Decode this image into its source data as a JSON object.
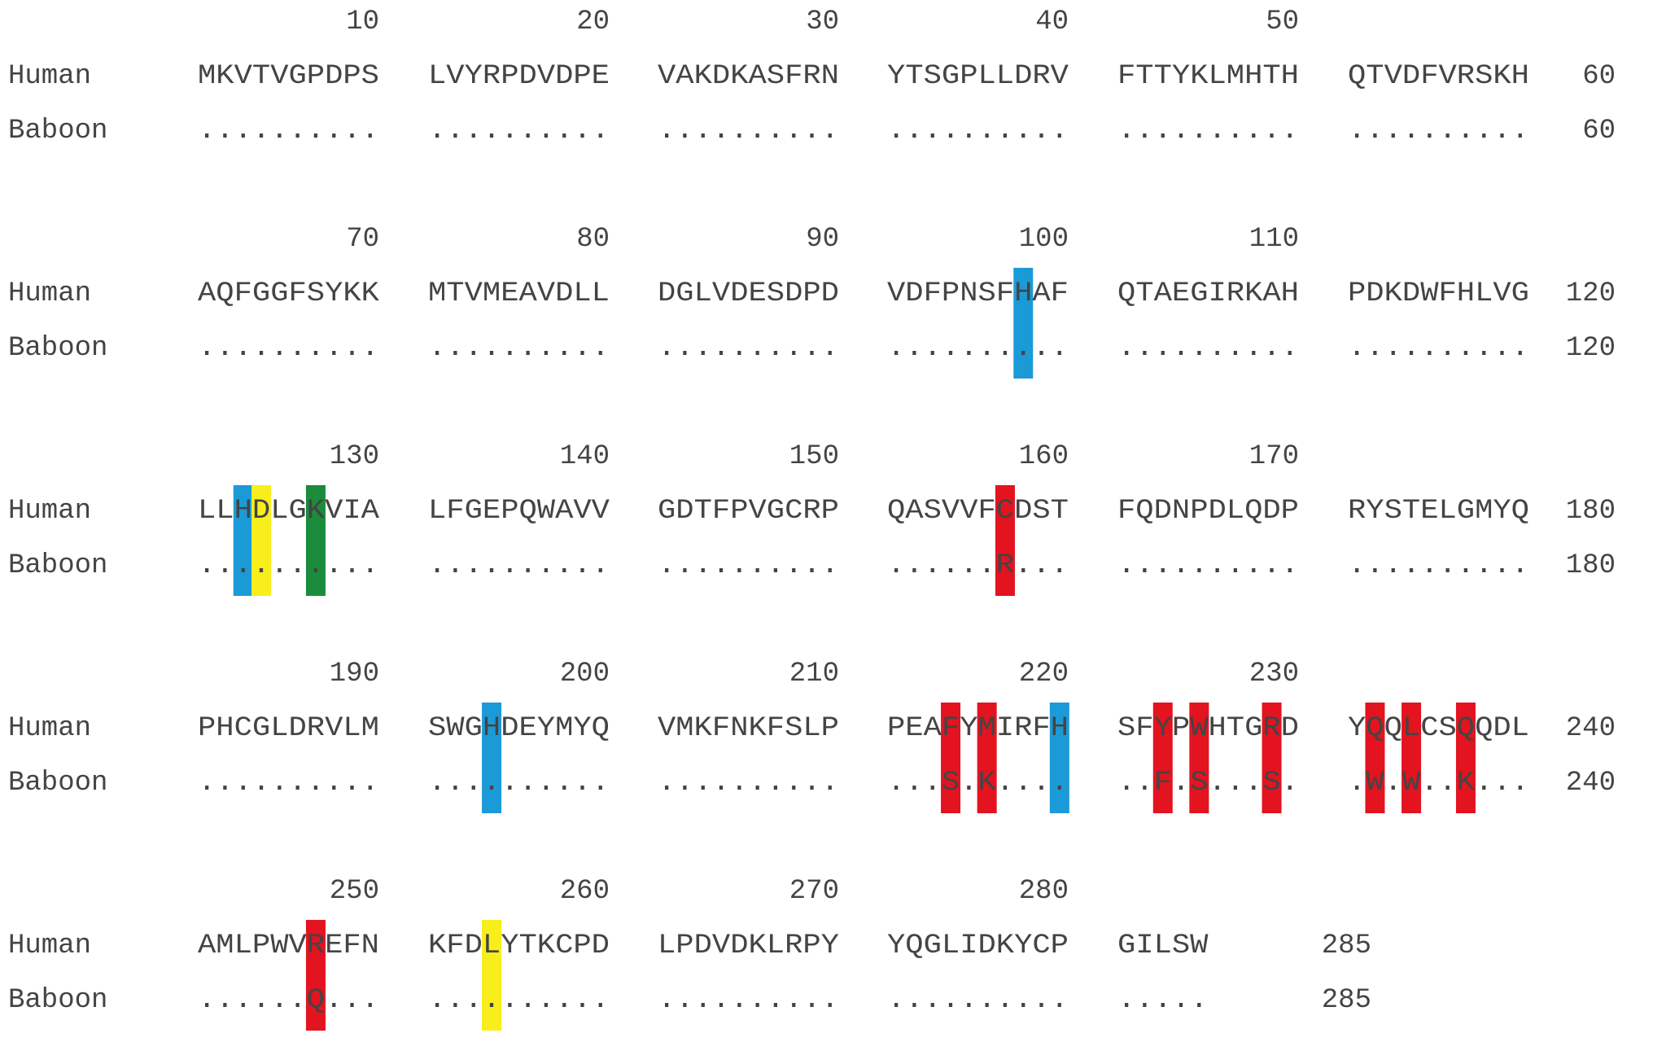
{
  "species": [
    "Human",
    "Baboon"
  ],
  "colors": {
    "red": "#e3131f",
    "blue": "#1b9ad8",
    "yellow": "#f8ee1c",
    "green": "#1a8c3c",
    "text": "#444444"
  },
  "blocks": [
    {
      "positions": [
        "10",
        "20",
        "30",
        "40",
        "50"
      ],
      "human": [
        "MKVTVGPDPS",
        "LVYRPDVDPE",
        "VAKDKASFRN",
        "YTSGPLLDRV",
        "FTTYKLMHTH",
        "QTVDFVRSKH"
      ],
      "baboon": [
        "..........",
        "..........",
        "..........",
        "..........",
        "..........",
        ".........."
      ],
      "end_human": "60",
      "end_baboon": "60",
      "highlights": []
    },
    {
      "positions": [
        "70",
        "80",
        "90",
        "100",
        "110"
      ],
      "human": [
        "AQFGGFSYKK",
        "MTVMEAVDLL",
        "DGLVDESDPD",
        "VDFPNSFHAF",
        "QTAEGIRKAH",
        "PDKDWFHLVG"
      ],
      "baboon": [
        "..........",
        "..........",
        "..........",
        "..........",
        "..........",
        ".........."
      ],
      "end_human": "120",
      "end_baboon": "120",
      "highlights": [
        {
          "position": 98,
          "color": "blue"
        }
      ]
    },
    {
      "positions": [
        "130",
        "140",
        "150",
        "160",
        "170"
      ],
      "human": [
        "LLHDLGKVIA",
        "LFGEPQWAVV",
        "GDTFPVGCRP",
        "QASVVFCDST",
        "FQDNPDLQDP",
        "RYSTELGMYQ"
      ],
      "baboon": [
        "..........",
        "..........",
        "..........",
        "......R...",
        "..........",
        ".........."
      ],
      "end_human": "180",
      "end_baboon": "180",
      "highlights": [
        {
          "position": 123,
          "color": "blue"
        },
        {
          "position": 124,
          "color": "yellow"
        },
        {
          "position": 127,
          "color": "green"
        },
        {
          "position": 157,
          "color": "red"
        }
      ]
    },
    {
      "positions": [
        "190",
        "200",
        "210",
        "220",
        "230"
      ],
      "human": [
        "PHCGLDRVLM",
        "SWGHDEYMYQ",
        "VMKFNKFSLP",
        "PEAFYMIRFH",
        "SFYPWHTGRD",
        "YQQLCSQQDL"
      ],
      "baboon": [
        "..........",
        "..........",
        "..........",
        "...S.K....",
        "..F.S...S.",
        ".W.W..K..."
      ],
      "end_human": "240",
      "end_baboon": "240",
      "highlights": [
        {
          "position": 194,
          "color": "blue"
        },
        {
          "position": 214,
          "color": "red"
        },
        {
          "position": 216,
          "color": "red"
        },
        {
          "position": 220,
          "color": "blue"
        },
        {
          "position": 223,
          "color": "red"
        },
        {
          "position": 225,
          "color": "red"
        },
        {
          "position": 229,
          "color": "red"
        },
        {
          "position": 232,
          "color": "red"
        },
        {
          "position": 234,
          "color": "red"
        },
        {
          "position": 237,
          "color": "red"
        }
      ]
    },
    {
      "positions": [
        "250",
        "260",
        "270",
        "280"
      ],
      "human": [
        "AMLPWVREFN",
        "KFDLYTKCPD",
        "LPDVDKLRPY",
        "YQGLIDKYCP",
        "GILSW"
      ],
      "baboon": [
        "......Q...",
        "..........",
        "..........",
        "..........",
        "....."
      ],
      "end_human": "285",
      "end_baboon": "285",
      "highlights": [
        {
          "position": 247,
          "color": "red"
        },
        {
          "position": 254,
          "color": "yellow"
        }
      ]
    }
  ]
}
